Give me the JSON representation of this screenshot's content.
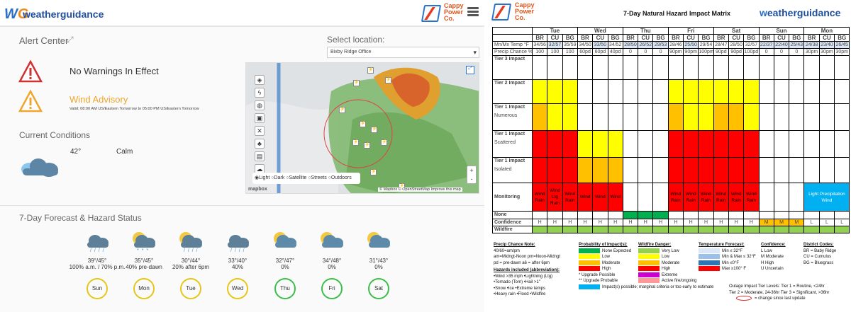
{
  "left": {
    "logo": "weatherguidance",
    "brand": {
      "company": [
        "Cappy",
        "Power",
        "Co."
      ]
    },
    "alert_center": {
      "title": "Alert Center"
    },
    "select_location": {
      "label": "Select location:",
      "value": "Bixby Ridge Office"
    },
    "alerts": [
      {
        "title": "No Warnings In Effect",
        "color": "#333333",
        "valid": ""
      },
      {
        "title": "Wind Advisory",
        "color": "#f0a52c",
        "valid": "Valid: 08:00 AM US/Eastern Tomorrow to 05:00 PM US/Eastern Tomorrow"
      }
    ],
    "current": {
      "title": "Current Conditions",
      "temp": "42°",
      "wind": "Calm"
    },
    "map": {
      "styles": [
        "Light",
        "Dark",
        "Satellite",
        "Streets",
        "Outdoors"
      ],
      "selected_style": "Light",
      "attribution": "© Mapbox © OpenStreetMap Improve this map",
      "mapbox_logo": "mapbox",
      "zoom_in": "+",
      "zoom_out": "-"
    },
    "forecast": {
      "title": "7-Day Forecast & Hazard Status",
      "days": [
        {
          "day": "Sun",
          "temps": "39°/45°",
          "precip": "100% a.m. / 70% p.m.",
          "icon": "rain-cloud-icon",
          "hazard": "yellow"
        },
        {
          "day": "Mon",
          "temps": "35°/45°",
          "precip": "40% pre-dawn",
          "icon": "partly-cloudy-snow-icon",
          "hazard": "yellow"
        },
        {
          "day": "Tue",
          "temps": "30°/44°",
          "precip": "20% after 6pm",
          "icon": "partly-cloudy-rain-icon",
          "hazard": "yellow"
        },
        {
          "day": "Wed",
          "temps": "33°/40°",
          "precip": "40%",
          "icon": "rain-cloud-icon",
          "hazard": "yellow"
        },
        {
          "day": "Thu",
          "temps": "32°/47°",
          "precip": "0%",
          "icon": "partly-sunny-icon",
          "hazard": "green"
        },
        {
          "day": "Fri",
          "temps": "34°/48°",
          "precip": "0%",
          "icon": "partly-sunny-icon",
          "hazard": "green"
        },
        {
          "day": "Sat",
          "temps": "31°/43°",
          "precip": "0%",
          "icon": "partly-sunny-icon",
          "hazard": "green"
        }
      ]
    }
  },
  "right": {
    "brand": {
      "company": [
        "Cappy",
        "Power",
        "Co."
      ]
    },
    "title": "7-Day Natural Hazard Impact Matrix",
    "logo": "weatherguidance",
    "days": [
      "Tue",
      "Wed",
      "Thu",
      "Fri",
      "Sat",
      "Sun",
      "Mon"
    ],
    "districts": [
      "BR",
      "CU",
      "BG"
    ],
    "temp_label": "Mn/Mx Temp °F",
    "temps": [
      "34/56",
      "32/57",
      "35/59",
      "34/50",
      "33/50",
      "34/52",
      "28/50",
      "26/52",
      "29/53",
      "28/46",
      "25/50",
      "29/54",
      "28/47",
      "28/50",
      "32/57",
      "22/37",
      "22/40",
      "25/43",
      "24/38",
      "23/40",
      "26/45"
    ],
    "precip_label": "Precip Chance %",
    "precip": [
      "100",
      "100",
      "100",
      "60pd",
      "60pd",
      "40pd",
      "0",
      "0",
      "0",
      "90pm",
      "90pm",
      "100pm",
      "90pd",
      "90pd",
      "100pd",
      "0",
      "0",
      "0",
      "30pm",
      "30pm",
      "30pm"
    ],
    "rows": [
      {
        "label": "Tier 3 Impact",
        "sub": "",
        "colors": [
          "W",
          "W",
          "W",
          "W",
          "W",
          "W",
          "W",
          "W",
          "W",
          "W",
          "W",
          "W",
          "W",
          "W",
          "W",
          "W",
          "W",
          "W",
          "W",
          "W",
          "W"
        ]
      },
      {
        "label": "Tier 2 Impact",
        "sub": "",
        "colors": [
          "Y",
          "Y",
          "Y",
          "W",
          "W",
          "W",
          "W",
          "W",
          "W",
          "Y",
          "Y",
          "Y",
          "Y",
          "Y",
          "Y",
          "W",
          "W",
          "W",
          "W",
          "W",
          "W"
        ]
      },
      {
        "label": "Tier 1 Impact",
        "sub": "Numerous",
        "colors": [
          "O",
          "Y",
          "Y",
          "W",
          "W",
          "W",
          "W",
          "W",
          "W",
          "O",
          "Y",
          "Y",
          "O",
          "O",
          "Y",
          "W",
          "W",
          "W",
          "W",
          "W",
          "W"
        ]
      },
      {
        "label": "Tier 1 Impact",
        "sub": "Scattered",
        "colors": [
          "R",
          "R",
          "R",
          "Y",
          "Y",
          "Y",
          "W",
          "W",
          "W",
          "R",
          "R",
          "R",
          "R",
          "R",
          "R",
          "W",
          "W",
          "W",
          "W",
          "W",
          "W"
        ]
      },
      {
        "label": "Tier 1 Impact",
        "sub": "Isolated",
        "colors": [
          "R",
          "R",
          "R",
          "O",
          "O",
          "O",
          "W",
          "W",
          "W",
          "R",
          "R",
          "R",
          "R",
          "R",
          "R",
          "W",
          "W",
          "W",
          "W",
          "W",
          "W"
        ]
      },
      {
        "label": "Monitoring",
        "sub": "",
        "colors": [
          "R",
          "R",
          "R",
          "R",
          "R",
          "R",
          "W",
          "W",
          "W",
          "R",
          "R",
          "R",
          "R",
          "R",
          "R",
          "W",
          "W",
          "W",
          "B",
          "B",
          "B"
        ]
      },
      {
        "label": "None",
        "sub": "",
        "colors": [
          "W",
          "W",
          "W",
          "W",
          "W",
          "W",
          "G",
          "G",
          "G",
          "W",
          "W",
          "W",
          "W",
          "W",
          "W",
          "W",
          "W",
          "W",
          "W",
          "W",
          "W"
        ]
      }
    ],
    "monitoring_text": [
      "Wind Rain",
      "Wind Ltg Rain",
      "Wind Rain",
      "Wind",
      "Wind",
      "Wind",
      "",
      "",
      "",
      "Wind Rain",
      "Wind Rain",
      "Wind Rain",
      "Wind Rain",
      "Wind Rain",
      "Wind Rain",
      "",
      "",
      "",
      "Light Precipitation Wind",
      "Wind",
      "Wind"
    ],
    "confidence_label": "Confidence",
    "confidence": [
      "H",
      "H",
      "H",
      "H",
      "H",
      "H",
      "H",
      "H",
      "H",
      "H",
      "H",
      "H",
      "H",
      "H",
      "H",
      "M",
      "M",
      "M",
      "L",
      "L",
      "L"
    ],
    "conf_colors": [
      "W",
      "W",
      "W",
      "W",
      "W",
      "W",
      "W",
      "W",
      "W",
      "W",
      "W",
      "W",
      "W",
      "W",
      "W",
      "O",
      "O",
      "O",
      "W",
      "W",
      "W"
    ],
    "wildfire_label": "Wildfire",
    "wildfire_colors": [
      "G",
      "G",
      "G",
      "G",
      "G",
      "G",
      "G",
      "G",
      "G",
      "G",
      "G",
      "G",
      "G",
      "G",
      "G",
      "G",
      "G",
      "G",
      "G",
      "G",
      "G"
    ],
    "palette": {
      "W": "#ffffff",
      "Y": "#ffff00",
      "O": "#ffc000",
      "R": "#ff0000",
      "G": "#00b050",
      "B": "#00b0f0",
      "LG": "#92d050"
    },
    "legend": {
      "precip_note": {
        "title": "Precip Chance Note:",
        "lines": [
          "40/60=am/pm",
          "am=Midngt-Noon  pm=Noon-Midngt",
          "pd = pre-dawn     a6 = after 6pm"
        ]
      },
      "hazards": {
        "title": "Hazards included (abbreviation):",
        "lines": [
          "•Wind >35 mph   •Lightning (Ltg)",
          "•Tornado (Torn)   •Hail >1\"",
          "•Snow  •Ice  •Extreme temps",
          "•Heavy rain  •Flood  •Wildfire"
        ]
      },
      "probability": {
        "title": "Probability of Impact(s):",
        "items": [
          "None Expected",
          "Low",
          "Moderate",
          "High",
          "Upgrade Possible",
          "Upgrade Probable",
          "Impact(s) possible; marginal criteria or too early to estimate"
        ]
      },
      "wildfire": {
        "title": "Wildfire Danger:",
        "items": [
          "Very Low",
          "Low",
          "Moderate",
          "High",
          "Extreme",
          "Active fire/ongoing"
        ]
      },
      "temperature": {
        "title": "Temperature Forecast:",
        "items": [
          "Min ≤ 32°F",
          "Min & Max ≤ 32°F",
          "Min ≤0°F",
          "Max ≥100° F"
        ]
      },
      "confidence": {
        "title": "Confidence:",
        "items": [
          "L   Low",
          "M   Moderate",
          "H   High",
          "U   Uncertain"
        ]
      },
      "districts": {
        "title": "District Codes:",
        "items": [
          "BR = Baby Ridge",
          "CU = Cumulus",
          "BG = Bluegrass"
        ]
      },
      "tiers": {
        "title": "Outage Impact Tier Levels:",
        "line1": "Tier 1 = Routine, <24hr",
        "line2": "Tier 2 = Moderate, 24-36hr  Tier 3 = Significant, >36hr",
        "change": "= change since last update"
      }
    }
  }
}
